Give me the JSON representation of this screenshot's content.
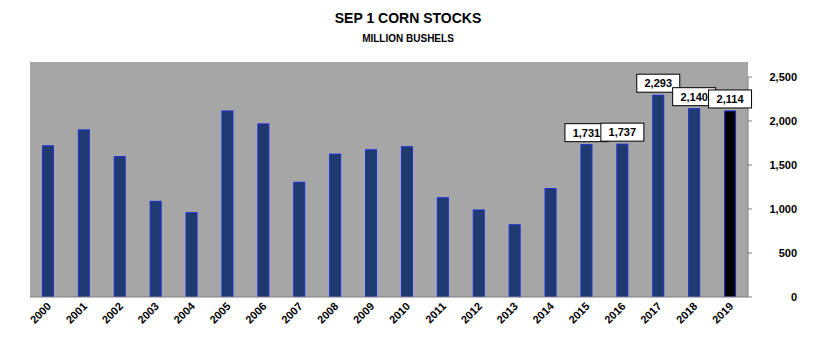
{
  "chart_data": {
    "type": "bar",
    "title": "SEP 1 CORN STOCKS",
    "subtitle": "MILLION BUSHELS",
    "categories": [
      "2000",
      "2001",
      "2002",
      "2003",
      "2004",
      "2005",
      "2006",
      "2007",
      "2008",
      "2009",
      "2010",
      "2011",
      "2012",
      "2013",
      "2014",
      "2015",
      "2016",
      "2017",
      "2018",
      "2019"
    ],
    "values": [
      1718,
      1899,
      1596,
      1087,
      958,
      2114,
      1967,
      1304,
      1624,
      1673,
      1708,
      1128,
      989,
      821,
      1232,
      1731,
      1737,
      2293,
      2140,
      2114
    ],
    "value_labels": [
      null,
      null,
      null,
      null,
      null,
      null,
      null,
      null,
      null,
      null,
      null,
      null,
      null,
      null,
      null,
      "1,731",
      "1,737",
      "2,293",
      "2,140",
      "2,114"
    ],
    "data_labels": true,
    "colors": [
      "#1f3a6e",
      "#1f3a6e",
      "#1f3a6e",
      "#1f3a6e",
      "#1f3a6e",
      "#1f3a6e",
      "#1f3a6e",
      "#1f3a6e",
      "#1f3a6e",
      "#1f3a6e",
      "#1f3a6e",
      "#1f3a6e",
      "#1f3a6e",
      "#1f3a6e",
      "#1f3a6e",
      "#1f3a6e",
      "#1f3a6e",
      "#1f3a6e",
      "#1f3a6e",
      "#000000"
    ],
    "ylim": [
      0,
      2500
    ],
    "yticks": [
      0,
      500,
      {
        "value": 1000,
        "label": "1,000"
      },
      {
        "value": 1500,
        "label": "1,500"
      },
      {
        "value": 2000,
        "label": "2,000"
      },
      {
        "value": 2500,
        "label": "2,500"
      }
    ],
    "grid": false
  }
}
